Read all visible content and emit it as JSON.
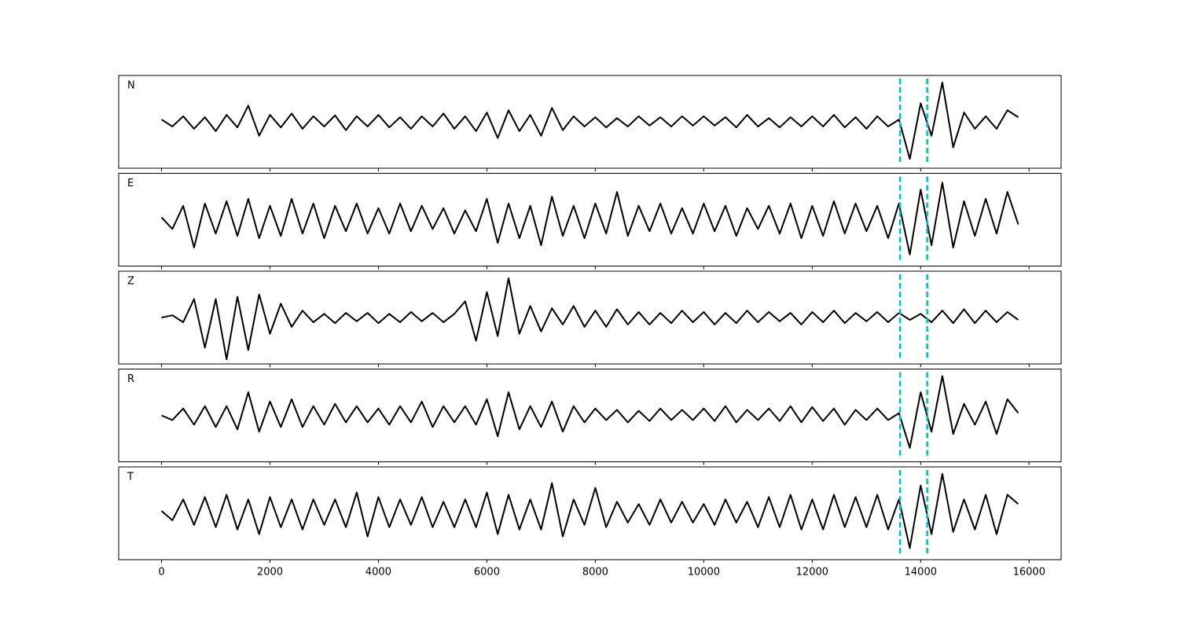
{
  "chart_data": {
    "type": "line",
    "x": [
      0,
      200,
      400,
      600,
      800,
      1000,
      1200,
      1400,
      1600,
      1800,
      2000,
      2200,
      2400,
      2600,
      2800,
      3000,
      3200,
      3400,
      3600,
      3800,
      4000,
      4200,
      4400,
      4600,
      4800,
      5000,
      5200,
      5400,
      5600,
      5800,
      6000,
      6200,
      6400,
      6600,
      6800,
      7000,
      7200,
      7400,
      7600,
      7800,
      8000,
      8200,
      8400,
      8600,
      8800,
      9000,
      9200,
      9400,
      9600,
      9800,
      10000,
      10200,
      10400,
      10600,
      10800,
      11000,
      11200,
      11400,
      11600,
      11800,
      12000,
      12200,
      12400,
      12600,
      12800,
      13000,
      13200,
      13400,
      13600,
      13800,
      14000,
      14200,
      14400,
      14600,
      14800,
      15000,
      15200,
      15400,
      15600,
      15800
    ],
    "series": [
      {
        "name": "N",
        "color": "#000000",
        "values": [
          0.05,
          -0.1,
          0.12,
          -0.15,
          0.1,
          -0.2,
          0.15,
          -0.12,
          0.35,
          -0.3,
          0.15,
          -0.12,
          0.18,
          -0.15,
          0.12,
          -0.1,
          0.14,
          -0.18,
          0.12,
          -0.1,
          0.15,
          -0.12,
          0.1,
          -0.15,
          0.12,
          -0.1,
          0.18,
          -0.15,
          0.12,
          -0.2,
          0.2,
          -0.35,
          0.25,
          -0.2,
          0.15,
          -0.3,
          0.3,
          -0.18,
          0.12,
          -0.1,
          0.1,
          -0.12,
          0.08,
          -0.1,
          0.12,
          -0.08,
          0.1,
          -0.1,
          0.12,
          -0.08,
          0.12,
          -0.08,
          0.1,
          -0.12,
          0.15,
          -0.1,
          0.08,
          -0.12,
          0.1,
          -0.1,
          0.12,
          -0.1,
          0.15,
          -0.12,
          0.1,
          -0.15,
          0.12,
          -0.1,
          0.05,
          -0.8,
          0.4,
          -0.3,
          0.85,
          -0.55,
          0.2,
          -0.15,
          0.12,
          -0.15,
          0.25,
          0.1
        ]
      },
      {
        "name": "E",
        "color": "#000000",
        "values": [
          0.05,
          -0.2,
          0.3,
          -0.6,
          0.35,
          -0.3,
          0.4,
          -0.35,
          0.45,
          -0.4,
          0.3,
          -0.35,
          0.45,
          -0.3,
          0.35,
          -0.4,
          0.3,
          -0.25,
          0.35,
          -0.3,
          0.25,
          -0.3,
          0.35,
          -0.25,
          0.3,
          -0.2,
          0.25,
          -0.3,
          0.2,
          -0.25,
          0.45,
          -0.5,
          0.35,
          -0.4,
          0.3,
          -0.55,
          0.5,
          -0.35,
          0.3,
          -0.4,
          0.35,
          -0.3,
          0.6,
          -0.35,
          0.3,
          -0.25,
          0.35,
          -0.3,
          0.25,
          -0.3,
          0.35,
          -0.25,
          0.3,
          -0.35,
          0.25,
          -0.2,
          0.3,
          -0.3,
          0.35,
          -0.4,
          0.3,
          -0.35,
          0.4,
          -0.3,
          0.35,
          -0.25,
          0.3,
          -0.4,
          0.35,
          -0.75,
          0.65,
          -0.55,
          0.8,
          -0.6,
          0.4,
          -0.35,
          0.45,
          -0.3,
          0.6,
          -0.1
        ]
      },
      {
        "name": "Z",
        "color": "#000000",
        "values": [
          0.0,
          0.05,
          -0.1,
          0.4,
          -0.65,
          0.4,
          -0.9,
          0.45,
          -0.7,
          0.5,
          -0.35,
          0.3,
          -0.2,
          0.15,
          -0.1,
          0.08,
          -0.12,
          0.1,
          -0.08,
          0.1,
          -0.12,
          0.08,
          -0.1,
          0.12,
          -0.08,
          0.1,
          -0.1,
          0.08,
          0.35,
          -0.5,
          0.55,
          -0.4,
          0.85,
          -0.35,
          0.25,
          -0.3,
          0.2,
          -0.15,
          0.25,
          -0.2,
          0.15,
          -0.2,
          0.18,
          -0.15,
          0.12,
          -0.15,
          0.1,
          -0.12,
          0.15,
          -0.1,
          0.12,
          -0.15,
          0.1,
          -0.12,
          0.15,
          -0.1,
          0.12,
          -0.08,
          0.1,
          -0.15,
          0.12,
          -0.1,
          0.15,
          -0.12,
          0.1,
          -0.08,
          0.12,
          -0.1,
          0.1,
          -0.05,
          0.08,
          -0.1,
          0.15,
          -0.12,
          0.18,
          -0.12,
          0.15,
          -0.1,
          0.12,
          -0.05
        ]
      },
      {
        "name": "R",
        "color": "#000000",
        "values": [
          0.0,
          -0.1,
          0.15,
          -0.2,
          0.2,
          -0.25,
          0.2,
          -0.3,
          0.5,
          -0.35,
          0.3,
          -0.25,
          0.35,
          -0.25,
          0.2,
          -0.2,
          0.25,
          -0.15,
          0.2,
          -0.15,
          0.15,
          -0.2,
          0.2,
          -0.15,
          0.3,
          -0.25,
          0.2,
          -0.15,
          0.2,
          -0.2,
          0.35,
          -0.45,
          0.5,
          -0.3,
          0.2,
          -0.25,
          0.3,
          -0.35,
          0.2,
          -0.15,
          0.15,
          -0.1,
          0.12,
          -0.15,
          0.1,
          -0.12,
          0.15,
          -0.1,
          0.12,
          -0.1,
          0.15,
          -0.12,
          0.2,
          -0.15,
          0.12,
          -0.1,
          0.15,
          -0.12,
          0.2,
          -0.15,
          0.18,
          -0.12,
          0.15,
          -0.2,
          0.12,
          -0.1,
          0.15,
          -0.1,
          0.05,
          -0.7,
          0.5,
          -0.35,
          0.85,
          -0.4,
          0.25,
          -0.2,
          0.3,
          -0.4,
          0.35,
          0.05
        ]
      },
      {
        "name": "T",
        "color": "#000000",
        "values": [
          0.05,
          -0.15,
          0.3,
          -0.25,
          0.35,
          -0.3,
          0.4,
          -0.35,
          0.3,
          -0.45,
          0.35,
          -0.3,
          0.3,
          -0.35,
          0.3,
          -0.25,
          0.3,
          -0.3,
          0.45,
          -0.5,
          0.35,
          -0.3,
          0.3,
          -0.25,
          0.35,
          -0.3,
          0.25,
          -0.3,
          0.3,
          -0.3,
          0.45,
          -0.45,
          0.4,
          -0.35,
          0.3,
          -0.35,
          0.65,
          -0.5,
          0.3,
          -0.25,
          0.55,
          -0.3,
          0.25,
          -0.2,
          0.2,
          -0.25,
          0.3,
          -0.2,
          0.25,
          -0.2,
          0.2,
          -0.25,
          0.3,
          -0.2,
          0.25,
          -0.3,
          0.35,
          -0.3,
          0.4,
          -0.35,
          0.3,
          -0.35,
          0.4,
          -0.3,
          0.35,
          -0.3,
          0.4,
          -0.35,
          0.3,
          -0.75,
          0.6,
          -0.45,
          0.85,
          -0.4,
          0.3,
          -0.35,
          0.4,
          -0.45,
          0.4,
          0.2
        ]
      }
    ],
    "vlines": [
      13620,
      14120
    ],
    "vline_color": "#00bfbf",
    "xlim": [
      -790,
      16590
    ],
    "xticks": [
      0,
      2000,
      4000,
      6000,
      8000,
      10000,
      12000,
      14000,
      16000
    ],
    "ylim": [
      -1,
      1
    ]
  }
}
